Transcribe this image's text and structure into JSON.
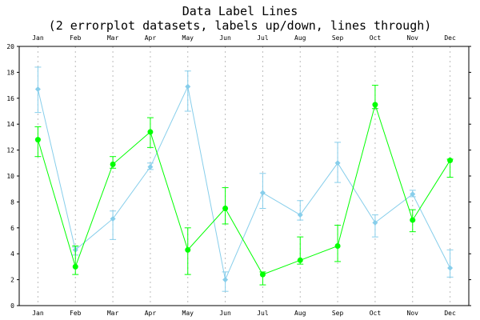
{
  "chart_data": {
    "type": "line",
    "title": "Data Label Lines",
    "subtitle": "(2 errorplot datasets, labels up/down, lines through)",
    "xlabel": "",
    "ylabel": "",
    "ylim": [
      0,
      20
    ],
    "y_ticks": [
      "0",
      "2",
      "4",
      "6",
      "8",
      "10",
      "12",
      "14",
      "16",
      "18",
      "20"
    ],
    "categories": [
      "Jan",
      "Feb",
      "Mar",
      "Apr",
      "May",
      "Jun",
      "Jul",
      "Aug",
      "Sep",
      "Oct",
      "Nov",
      "Dec"
    ],
    "grid": "vertical dotted",
    "legend": "none",
    "series": [
      {
        "color": "#87ceeb",
        "marker": "diamond",
        "values": [
          16.7,
          4.3,
          6.7,
          10.7,
          16.9,
          2.0,
          8.7,
          7.0,
          11.0,
          6.4,
          8.6,
          2.9
        ],
        "err_low": [
          14.9,
          3.9,
          5.1,
          10.5,
          15.0,
          1.1,
          7.5,
          6.6,
          9.5,
          5.3,
          8.4,
          2.2
        ],
        "err_high": [
          18.4,
          4.5,
          7.3,
          11.0,
          18.1,
          2.6,
          10.2,
          8.1,
          12.6,
          7.0,
          8.9,
          4.3
        ]
      },
      {
        "color": "#00ff00",
        "marker": "circle",
        "values": [
          12.8,
          3.0,
          10.9,
          13.4,
          4.3,
          7.5,
          2.4,
          3.5,
          4.6,
          15.5,
          6.6,
          11.2
        ],
        "err_low": [
          11.5,
          2.4,
          10.6,
          12.2,
          2.4,
          6.3,
          1.6,
          3.2,
          3.4,
          15.2,
          5.7,
          9.9
        ],
        "err_high": [
          13.8,
          4.6,
          11.5,
          14.5,
          6.0,
          9.1,
          2.6,
          5.3,
          6.2,
          17.0,
          7.4,
          11.3
        ]
      }
    ]
  }
}
